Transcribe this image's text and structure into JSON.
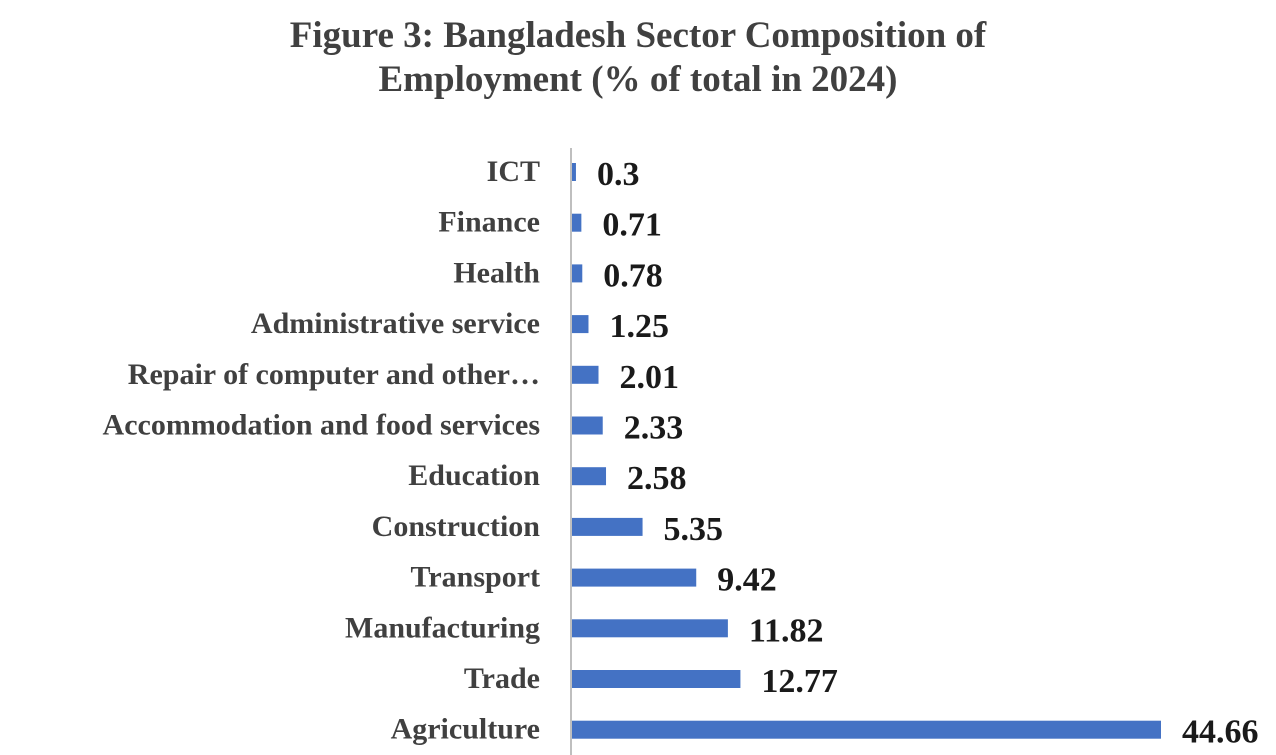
{
  "chart_data": {
    "type": "bar",
    "orientation": "horizontal",
    "title_lines": [
      "Figure 3: Bangladesh Sector Composition of",
      "Employment (% of total in 2024)"
    ],
    "categories": [
      "ICT",
      "Finance",
      "Health",
      "Administrative service",
      "Repair of computer and other…",
      "Accommodation and food services",
      "Education",
      "Construction",
      "Transport",
      "Manufacturing",
      "Trade",
      "Agriculture"
    ],
    "values": [
      0.3,
      0.71,
      0.78,
      1.25,
      2.01,
      2.33,
      2.58,
      5.35,
      9.42,
      11.82,
      12.77,
      44.66
    ],
    "xlabel": "",
    "ylabel": "",
    "xlim": [
      0,
      45
    ],
    "grid": false,
    "legend": "none",
    "bar_color": "#4472C4"
  }
}
